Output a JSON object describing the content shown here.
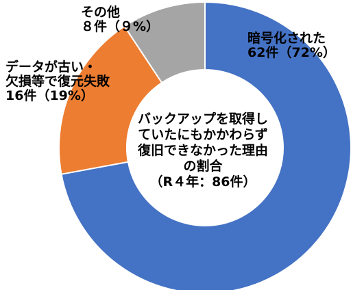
{
  "chart_data": {
    "type": "pie",
    "variant": "donut",
    "title_lines": [
      "バックアップを取得し",
      "ていたにもかかわらず",
      "復旧できなかった理由",
      "の割合",
      "（R４年：86件）"
    ],
    "slices": [
      {
        "name": "暗号化された",
        "count_label": "62件（72%）",
        "value": 62,
        "percent": 72,
        "color": "#4472C4"
      },
      {
        "name": "データが古い・欠損等で復元失敗",
        "count_label": "16件（19%）",
        "value": 16,
        "percent": 19,
        "color": "#ED7D31"
      },
      {
        "name": "その他",
        "count_label": "８件（９%）",
        "value": 8,
        "percent": 9,
        "color": "#A5A5A5"
      }
    ],
    "labels": {
      "encrypted": [
        "暗号化された",
        "62件（72%）"
      ],
      "old_data": [
        "データが古い・",
        "欠損等で復元失敗",
        "16件（19%）"
      ],
      "other": [
        "その他",
        "８件（９%）"
      ]
    }
  }
}
